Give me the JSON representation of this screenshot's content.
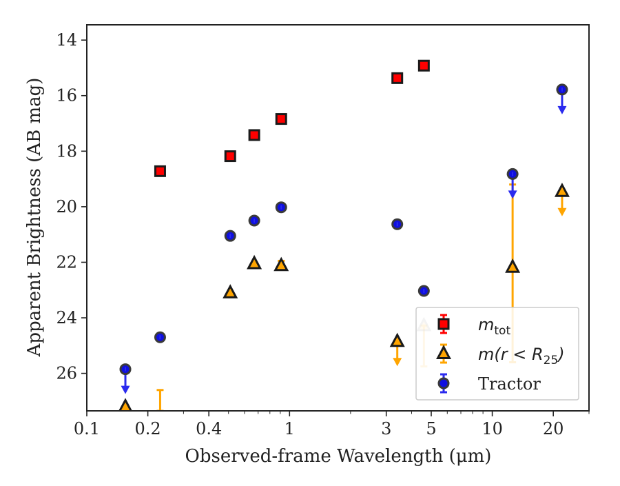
{
  "chart_data": {
    "type": "scatter",
    "xlabel": "Observed-frame Wavelength (μm)",
    "ylabel": "Apparent Brightness (AB mag)",
    "xscale": "log",
    "xlim": [
      0.1,
      30
    ],
    "ylim": [
      27.35,
      13.45
    ],
    "y_inverted": true,
    "xticks": [
      {
        "value": 0.1,
        "label": "0.1"
      },
      {
        "value": 0.2,
        "label": "0.2"
      },
      {
        "value": 0.4,
        "label": "0.4"
      },
      {
        "value": 1,
        "label": "1"
      },
      {
        "value": 3,
        "label": "3"
      },
      {
        "value": 5,
        "label": "5"
      },
      {
        "value": 10,
        "label": "10"
      },
      {
        "value": 20,
        "label": "20"
      }
    ],
    "yticks": [
      {
        "value": 14,
        "label": "14"
      },
      {
        "value": 16,
        "label": "16"
      },
      {
        "value": 18,
        "label": "18"
      },
      {
        "value": 20,
        "label": "20"
      },
      {
        "value": 22,
        "label": "22"
      },
      {
        "value": 24,
        "label": "24"
      },
      {
        "value": 26,
        "label": "26"
      }
    ],
    "grid": false,
    "legend_position": "lower-right",
    "series": [
      {
        "name": "m_tot",
        "label_main": "m",
        "label_sub": "tot",
        "marker": "square",
        "color": "#ff0000",
        "edge": "#1a1a1a",
        "errcolor": "#ff0000",
        "points": [
          {
            "x": 0.23,
            "y": 18.72
          },
          {
            "x": 0.51,
            "y": 18.18
          },
          {
            "x": 0.67,
            "y": 17.42
          },
          {
            "x": 0.91,
            "y": 16.84
          },
          {
            "x": 3.4,
            "y": 15.37
          },
          {
            "x": 4.6,
            "y": 14.92
          }
        ]
      },
      {
        "name": "m(r<R_25)",
        "label_main": "m(r < R",
        "label_sub": "25",
        "label_tail": ")",
        "marker": "triangle",
        "color": "#ffa500",
        "edge": "#1a1a1a",
        "errcolor": "#ffa500",
        "points": [
          {
            "x": 0.155,
            "y": 27.2
          },
          {
            "x": 0.51,
            "y": 23.1
          },
          {
            "x": 0.67,
            "y": 22.05
          },
          {
            "x": 0.91,
            "y": 22.12
          },
          {
            "x": 3.4,
            "y": 24.85,
            "upper_limit": true
          },
          {
            "x": 4.6,
            "y": 24.28,
            "err": [
              24.28,
              25.75
            ],
            "faded": true
          },
          {
            "x": 12.6,
            "y": 22.18,
            "err": [
              19.2,
              25.6
            ]
          },
          {
            "x": 22.1,
            "y": 19.45,
            "upper_limit": true
          }
        ],
        "extra_errorbars": [
          {
            "x": 0.23,
            "err": [
              26.6,
              27.35
            ]
          },
          {
            "x": 0.91,
            "err": [
              21.95,
              22.25
            ]
          }
        ]
      },
      {
        "name": "Tractor",
        "label_main": "Tractor",
        "marker": "circle",
        "color": "#1010e0",
        "edge": "#3a3a3a",
        "errcolor": "#2a2aee",
        "points": [
          {
            "x": 0.155,
            "y": 25.85,
            "upper_limit": true
          },
          {
            "x": 0.23,
            "y": 24.7
          },
          {
            "x": 0.51,
            "y": 21.05
          },
          {
            "x": 0.67,
            "y": 20.5
          },
          {
            "x": 0.91,
            "y": 20.02
          },
          {
            "x": 3.4,
            "y": 20.63
          },
          {
            "x": 4.6,
            "y": 23.03
          },
          {
            "x": 12.6,
            "y": 18.82,
            "upper_limit": true
          },
          {
            "x": 22.1,
            "y": 15.78,
            "upper_limit": true
          }
        ]
      }
    ]
  }
}
